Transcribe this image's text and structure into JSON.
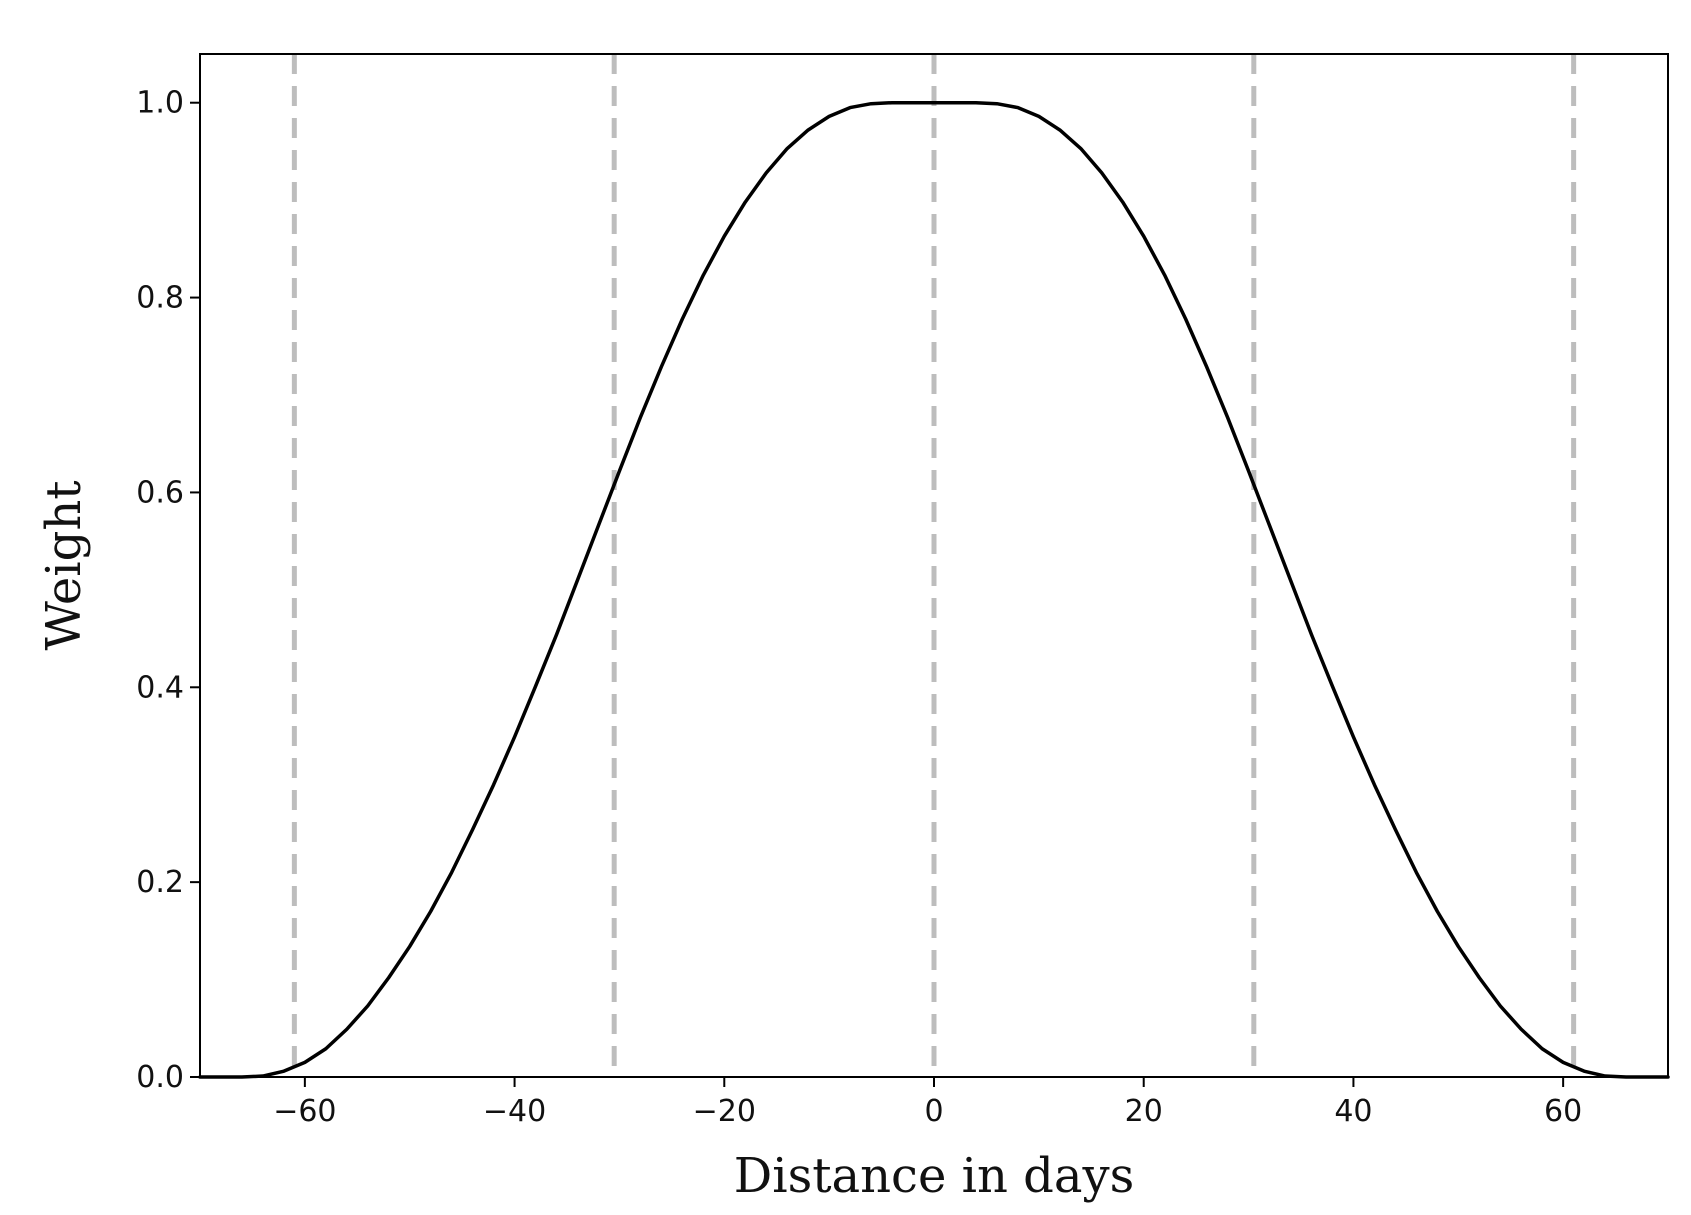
{
  "chart_data": {
    "type": "line",
    "title": "",
    "xlabel": "Distance in days",
    "ylabel": "Weight",
    "xlim": [
      -70,
      70
    ],
    "ylim": [
      0,
      1.05
    ],
    "grid": false,
    "x_ticks": [
      -60,
      -40,
      -20,
      0,
      20,
      40,
      60
    ],
    "x_tick_labels": [
      "−60",
      "−40",
      "−20",
      "0",
      "20",
      "40",
      "60"
    ],
    "y_ticks": [
      0.0,
      0.2,
      0.4,
      0.6,
      0.8,
      1.0
    ],
    "y_tick_labels": [
      "0.0",
      "0.2",
      "0.4",
      "0.6",
      "0.8",
      "1.0"
    ],
    "reference_lines": {
      "orientation": "vertical",
      "style": "dashed",
      "color": "#bdbdbd",
      "x": [
        -61,
        -30.5,
        0,
        30.5,
        61
      ]
    },
    "series": [
      {
        "color": "#000000",
        "x": [
          -70,
          -66,
          -64,
          -62,
          -60,
          -58,
          -56,
          -54,
          -52,
          -50,
          -48,
          -46,
          -44,
          -42,
          -40,
          -38,
          -36,
          -34,
          -32,
          -30,
          -28,
          -26,
          -24,
          -22,
          -20,
          -18,
          -16,
          -14,
          -12,
          -10,
          -8,
          -6,
          -4,
          -2,
          0,
          2,
          4,
          6,
          8,
          10,
          12,
          14,
          16,
          18,
          20,
          22,
          24,
          26,
          28,
          30,
          32,
          34,
          36,
          38,
          40,
          42,
          44,
          46,
          48,
          50,
          52,
          54,
          56,
          58,
          60,
          62,
          64,
          66,
          70
        ],
        "y": [
          0.0,
          0.0,
          0.001,
          0.006,
          0.015,
          0.029,
          0.049,
          0.073,
          0.102,
          0.134,
          0.17,
          0.21,
          0.254,
          0.3,
          0.349,
          0.401,
          0.454,
          0.51,
          0.566,
          0.622,
          0.677,
          0.729,
          0.778,
          0.823,
          0.863,
          0.898,
          0.928,
          0.953,
          0.972,
          0.986,
          0.995,
          0.999,
          1.0,
          1.0,
          1.0,
          1.0,
          1.0,
          0.999,
          0.995,
          0.986,
          0.972,
          0.953,
          0.928,
          0.898,
          0.863,
          0.823,
          0.778,
          0.729,
          0.677,
          0.622,
          0.566,
          0.51,
          0.454,
          0.401,
          0.349,
          0.3,
          0.254,
          0.21,
          0.17,
          0.134,
          0.102,
          0.073,
          0.049,
          0.029,
          0.015,
          0.006,
          0.001,
          0.0,
          0.0
        ]
      }
    ]
  }
}
